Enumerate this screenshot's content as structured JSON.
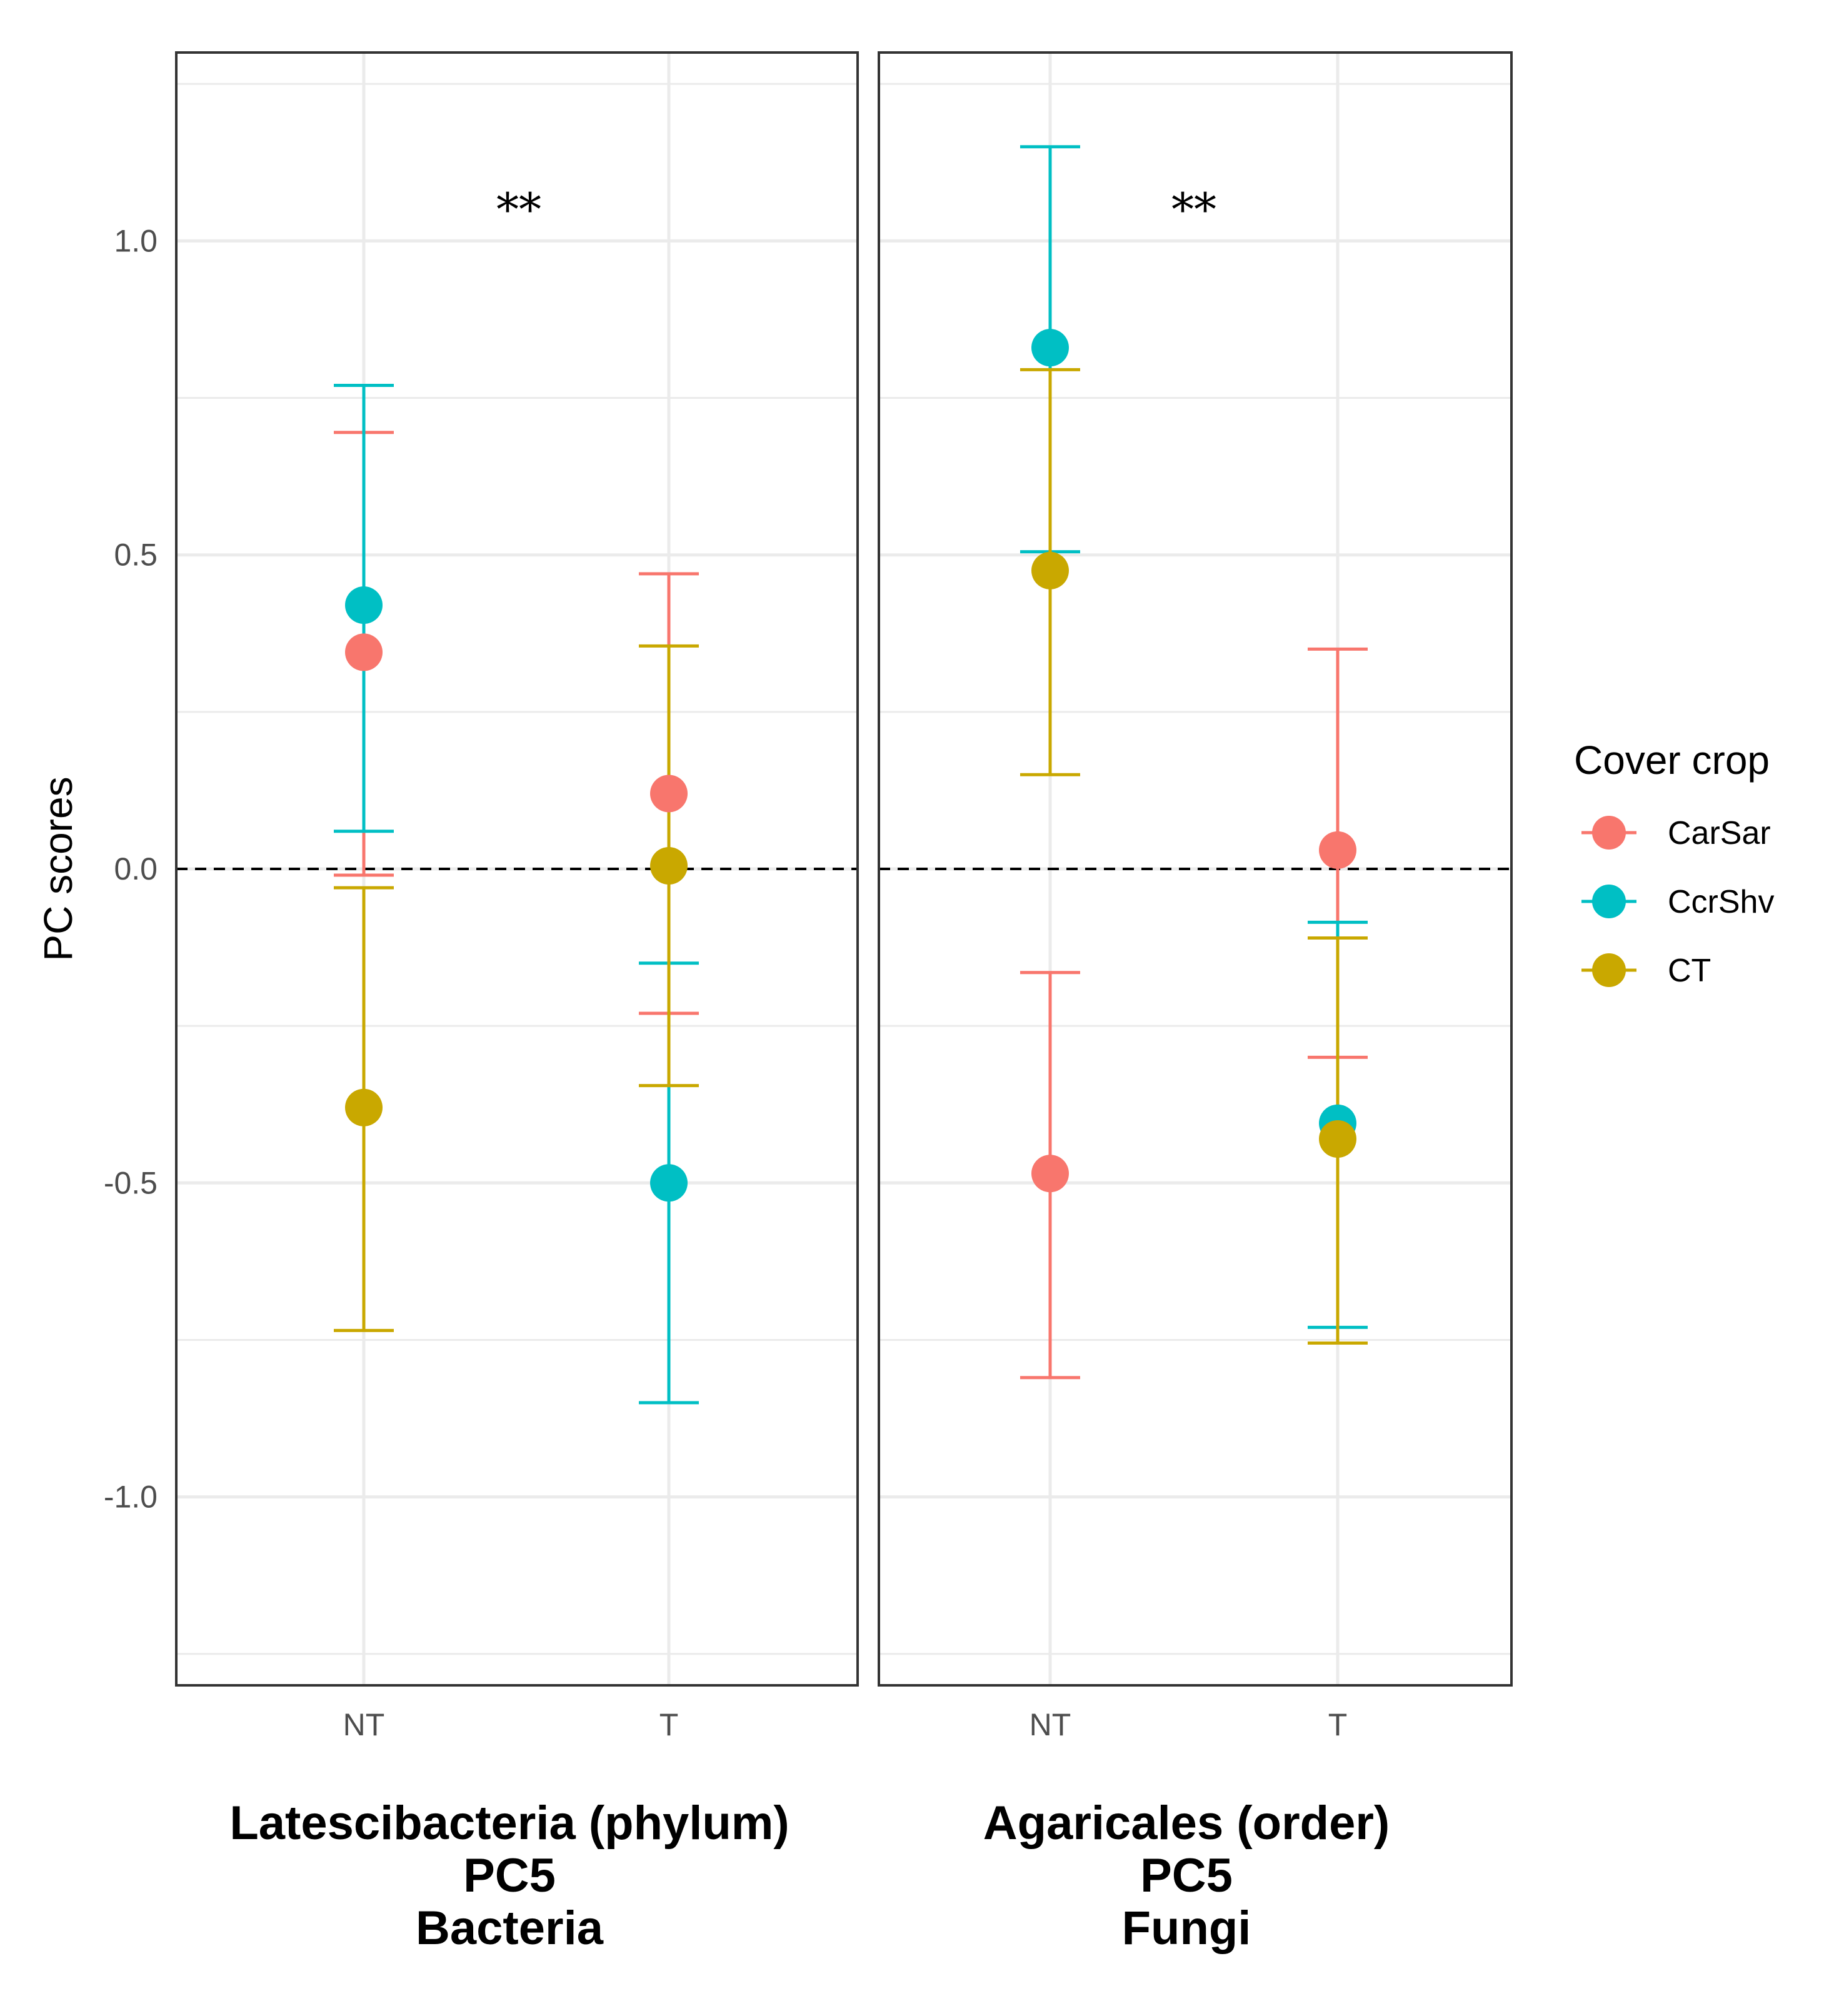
{
  "chart_data": {
    "type": "scatter",
    "subtype": "point-with-errorbars, faceted",
    "ylabel": "PC scores",
    "ylim": [
      -1.3,
      1.3
    ],
    "yticks": [
      1.0,
      0.5,
      0.0,
      -0.5,
      -1.0
    ],
    "ytick_labels": [
      "1.0",
      "0.5",
      "0.0",
      "-0.5",
      "-1.0"
    ],
    "categories": [
      "NT",
      "T"
    ],
    "reference_line": 0.0,
    "grid": true,
    "legend": {
      "title": "Cover crop",
      "position": "right",
      "entries": [
        {
          "name": "CarSar",
          "color": "#F8766D"
        },
        {
          "name": "CcrShv",
          "color": "#00BFC4"
        },
        {
          "name": "CT",
          "color": "#C9A800"
        }
      ]
    },
    "facets": [
      {
        "label_lines": [
          "Latescibacteria (phylum)",
          "PC5",
          "Bacteria"
        ],
        "annotation": "**",
        "series": [
          {
            "name": "CarSar",
            "points": [
              {
                "x": "NT",
                "y": 0.345,
                "lo": -0.01,
                "hi": 0.695
              },
              {
                "x": "T",
                "y": 0.12,
                "lo": -0.23,
                "hi": 0.47
              }
            ]
          },
          {
            "name": "CcrShv",
            "points": [
              {
                "x": "NT",
                "y": 0.42,
                "lo": 0.06,
                "hi": 0.77
              },
              {
                "x": "T",
                "y": -0.5,
                "lo": -0.85,
                "hi": -0.15
              }
            ]
          },
          {
            "name": "CT",
            "points": [
              {
                "x": "NT",
                "y": -0.38,
                "lo": -0.735,
                "hi": -0.03
              },
              {
                "x": "T",
                "y": 0.005,
                "lo": -0.345,
                "hi": 0.355
              }
            ]
          }
        ]
      },
      {
        "label_lines": [
          "Agaricales (order)",
          "PC5",
          "Fungi"
        ],
        "annotation": "**",
        "series": [
          {
            "name": "CarSar",
            "points": [
              {
                "x": "NT",
                "y": -0.485,
                "lo": -0.81,
                "hi": -0.165
              },
              {
                "x": "T",
                "y": 0.03,
                "lo": -0.3,
                "hi": 0.35
              }
            ]
          },
          {
            "name": "CcrShv",
            "points": [
              {
                "x": "NT",
                "y": 0.83,
                "lo": 0.505,
                "hi": 1.15
              },
              {
                "x": "T",
                "y": -0.405,
                "lo": -0.73,
                "hi": -0.085
              }
            ]
          },
          {
            "name": "CT",
            "points": [
              {
                "x": "NT",
                "y": 0.475,
                "lo": 0.15,
                "hi": 0.795
              },
              {
                "x": "T",
                "y": -0.43,
                "lo": -0.755,
                "hi": -0.11
              }
            ]
          }
        ]
      }
    ]
  }
}
